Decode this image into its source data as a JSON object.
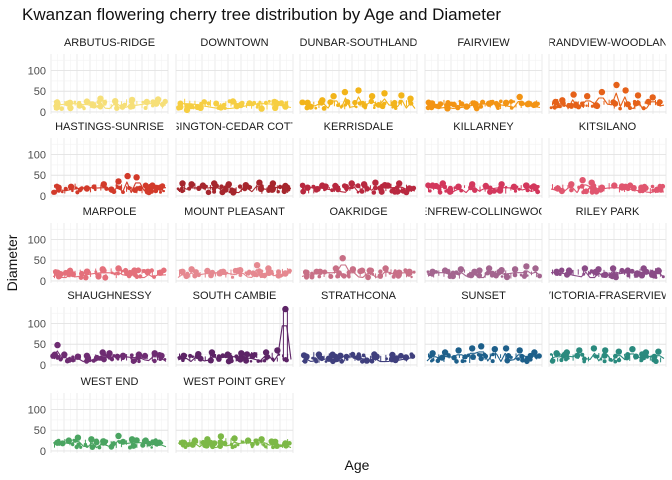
{
  "chart_data": {
    "type": "scatter",
    "title": "Kwanzan flowering cherry tree distribution by Age and Diameter",
    "xlabel": "Age",
    "ylabel": "Diameter",
    "ylim": [
      -5,
      140
    ],
    "yticks": [
      0,
      50,
      100
    ],
    "grid": true,
    "facet_by": "neighbourhood",
    "panels": [
      {
        "label": "ARBUTUS-RIDGE",
        "color": "#F6DF78",
        "peaks": [
          [
            0.04,
            20
          ],
          [
            0.15,
            22
          ],
          [
            0.3,
            25
          ],
          [
            0.42,
            32
          ],
          [
            0.55,
            26
          ],
          [
            0.7,
            29
          ],
          [
            0.83,
            24
          ],
          [
            0.93,
            30
          ]
        ]
      },
      {
        "label": "DOWNTOWN",
        "color": "#F6CE42",
        "peaks": [
          [
            0.02,
            12
          ],
          [
            0.08,
            5
          ],
          [
            0.2,
            10
          ],
          [
            0.38,
            11
          ],
          [
            0.52,
            14
          ],
          [
            0.74,
            8
          ],
          [
            0.86,
            10
          ],
          [
            0.95,
            13
          ]
        ]
      },
      {
        "label": "DUNBAR-SOUTHLAND",
        "color": "#F2B41A",
        "peaks": [
          [
            0.05,
            22
          ],
          [
            0.18,
            28
          ],
          [
            0.28,
            38
          ],
          [
            0.38,
            48
          ],
          [
            0.5,
            52
          ],
          [
            0.62,
            38
          ],
          [
            0.73,
            45
          ],
          [
            0.88,
            40
          ],
          [
            0.96,
            32
          ]
        ]
      },
      {
        "label": "FAIRVIEW",
        "color": "#F39414",
        "peaks": [
          [
            0.04,
            12
          ],
          [
            0.18,
            15
          ],
          [
            0.35,
            13
          ],
          [
            0.55,
            20
          ],
          [
            0.7,
            22
          ],
          [
            0.82,
            36
          ],
          [
            0.9,
            20
          ],
          [
            0.96,
            18
          ]
        ]
      },
      {
        "label": "GRANDVIEW-WOODLAND",
        "color": "#E56119",
        "peaks": [
          [
            0.04,
            24
          ],
          [
            0.1,
            28
          ],
          [
            0.2,
            42
          ],
          [
            0.32,
            38
          ],
          [
            0.45,
            48
          ],
          [
            0.58,
            65
          ],
          [
            0.66,
            52
          ],
          [
            0.77,
            40
          ],
          [
            0.9,
            35
          ]
        ]
      },
      {
        "label": "HASTINGS-SUNRISE",
        "color": "#D23A2A",
        "peaks": [
          [
            0.05,
            20
          ],
          [
            0.16,
            22
          ],
          [
            0.3,
            18
          ],
          [
            0.45,
            28
          ],
          [
            0.58,
            35
          ],
          [
            0.66,
            48
          ],
          [
            0.74,
            45
          ],
          [
            0.88,
            25
          ],
          [
            0.95,
            20
          ]
        ]
      },
      {
        "label": "KENSINGTON-CEDAR COTTAGE",
        "color": "#A6262D",
        "peaks": [
          [
            0.04,
            30
          ],
          [
            0.12,
            28
          ],
          [
            0.22,
            25
          ],
          [
            0.32,
            30
          ],
          [
            0.45,
            28
          ],
          [
            0.6,
            26
          ],
          [
            0.72,
            32
          ],
          [
            0.84,
            30
          ],
          [
            0.95,
            24
          ]
        ]
      },
      {
        "label": "KERRISDALE",
        "color": "#B8283F",
        "peaks": [
          [
            0.05,
            20
          ],
          [
            0.18,
            25
          ],
          [
            0.3,
            22
          ],
          [
            0.44,
            30
          ],
          [
            0.55,
            28
          ],
          [
            0.65,
            32
          ],
          [
            0.76,
            25
          ],
          [
            0.86,
            30
          ],
          [
            0.95,
            18
          ]
        ]
      },
      {
        "label": "KILLARNEY",
        "color": "#D3375C",
        "peaks": [
          [
            0.05,
            25
          ],
          [
            0.14,
            30
          ],
          [
            0.28,
            22
          ],
          [
            0.4,
            28
          ],
          [
            0.52,
            24
          ],
          [
            0.66,
            28
          ],
          [
            0.77,
            22
          ],
          [
            0.88,
            25
          ],
          [
            0.96,
            20
          ]
        ]
      },
      {
        "label": "KITSILANO",
        "color": "#E0566F",
        "peaks": [
          [
            0.06,
            18
          ],
          [
            0.18,
            28
          ],
          [
            0.28,
            38
          ],
          [
            0.36,
            32
          ],
          [
            0.45,
            20
          ],
          [
            0.56,
            25
          ],
          [
            0.66,
            22
          ],
          [
            0.8,
            20
          ],
          [
            0.94,
            15
          ]
        ]
      },
      {
        "label": "MARPOLE",
        "color": "#E4707B",
        "peaks": [
          [
            0.04,
            20
          ],
          [
            0.15,
            24
          ],
          [
            0.3,
            22
          ],
          [
            0.44,
            28
          ],
          [
            0.58,
            30
          ],
          [
            0.72,
            25
          ],
          [
            0.84,
            22
          ],
          [
            0.95,
            20
          ]
        ]
      },
      {
        "label": "MOUNT PLEASANT",
        "color": "#E58890",
        "peaks": [
          [
            0.04,
            22
          ],
          [
            0.12,
            28
          ],
          [
            0.26,
            24
          ],
          [
            0.4,
            22
          ],
          [
            0.55,
            26
          ],
          [
            0.7,
            38
          ],
          [
            0.8,
            30
          ],
          [
            0.95,
            18
          ]
        ]
      },
      {
        "label": "OAKRIDGE",
        "color": "#C86F86",
        "peaks": [
          [
            0.04,
            20
          ],
          [
            0.16,
            22
          ],
          [
            0.3,
            30
          ],
          [
            0.36,
            55
          ],
          [
            0.45,
            28
          ],
          [
            0.6,
            25
          ],
          [
            0.74,
            30
          ],
          [
            0.86,
            20
          ],
          [
            0.95,
            22
          ]
        ]
      },
      {
        "label": "RENFREW-COLLINGWOOD",
        "color": "#A3658F",
        "peaks": [
          [
            0.05,
            22
          ],
          [
            0.16,
            25
          ],
          [
            0.3,
            28
          ],
          [
            0.42,
            22
          ],
          [
            0.55,
            30
          ],
          [
            0.66,
            26
          ],
          [
            0.78,
            28
          ],
          [
            0.88,
            35
          ],
          [
            0.96,
            30
          ]
        ]
      },
      {
        "label": "RILEY PARK",
        "color": "#8A4B87",
        "peaks": [
          [
            0.05,
            22
          ],
          [
            0.16,
            25
          ],
          [
            0.3,
            30
          ],
          [
            0.42,
            28
          ],
          [
            0.55,
            30
          ],
          [
            0.68,
            25
          ],
          [
            0.82,
            30
          ],
          [
            0.95,
            25
          ]
        ]
      },
      {
        "label": "SHAUGHNESSY",
        "color": "#6E2C72",
        "peaks": [
          [
            0.04,
            48
          ],
          [
            0.1,
            25
          ],
          [
            0.22,
            20
          ],
          [
            0.3,
            22
          ],
          [
            0.44,
            30
          ],
          [
            0.5,
            28
          ],
          [
            0.62,
            22
          ],
          [
            0.76,
            25
          ],
          [
            0.9,
            28
          ],
          [
            0.96,
            22
          ]
        ]
      },
      {
        "label": "SOUTH CAMBIE",
        "color": "#5D2466",
        "peaks": [
          [
            0.05,
            22
          ],
          [
            0.18,
            26
          ],
          [
            0.3,
            30
          ],
          [
            0.44,
            25
          ],
          [
            0.56,
            28
          ],
          [
            0.66,
            22
          ],
          [
            0.78,
            30
          ],
          [
            0.88,
            35
          ],
          [
            0.95,
            135
          ]
        ]
      },
      {
        "label": "STRATHCONA",
        "color": "#3F3F7D",
        "peaks": [
          [
            0.04,
            20
          ],
          [
            0.15,
            25
          ],
          [
            0.24,
            15
          ],
          [
            0.34,
            22
          ],
          [
            0.5,
            18
          ],
          [
            0.66,
            20
          ],
          [
            0.8,
            24
          ],
          [
            0.92,
            18
          ]
        ]
      },
      {
        "label": "SUNSET",
        "color": "#1D5F8A",
        "peaks": [
          [
            0.05,
            28
          ],
          [
            0.16,
            30
          ],
          [
            0.28,
            35
          ],
          [
            0.4,
            40
          ],
          [
            0.48,
            45
          ],
          [
            0.6,
            38
          ],
          [
            0.7,
            40
          ],
          [
            0.82,
            35
          ],
          [
            0.95,
            30
          ]
        ]
      },
      {
        "label": "VICTORIA-FRASERVIEW",
        "color": "#2A8A7E",
        "peaks": [
          [
            0.05,
            28
          ],
          [
            0.14,
            30
          ],
          [
            0.25,
            35
          ],
          [
            0.38,
            40
          ],
          [
            0.48,
            35
          ],
          [
            0.6,
            32
          ],
          [
            0.72,
            38
          ],
          [
            0.84,
            30
          ],
          [
            0.95,
            32
          ]
        ]
      },
      {
        "label": "WEST END",
        "color": "#4AA461",
        "peaks": [
          [
            0.04,
            20
          ],
          [
            0.14,
            25
          ],
          [
            0.22,
            32
          ],
          [
            0.34,
            28
          ],
          [
            0.45,
            22
          ],
          [
            0.58,
            36
          ],
          [
            0.7,
            28
          ],
          [
            0.82,
            25
          ],
          [
            0.94,
            20
          ]
        ]
      },
      {
        "label": "WEST POINT GREY",
        "color": "#7CB846",
        "peaks": [
          [
            0.04,
            20
          ],
          [
            0.15,
            25
          ],
          [
            0.26,
            28
          ],
          [
            0.38,
            35
          ],
          [
            0.5,
            30
          ],
          [
            0.62,
            25
          ],
          [
            0.74,
            28
          ],
          [
            0.86,
            22
          ],
          [
            0.95,
            18
          ]
        ]
      }
    ]
  }
}
